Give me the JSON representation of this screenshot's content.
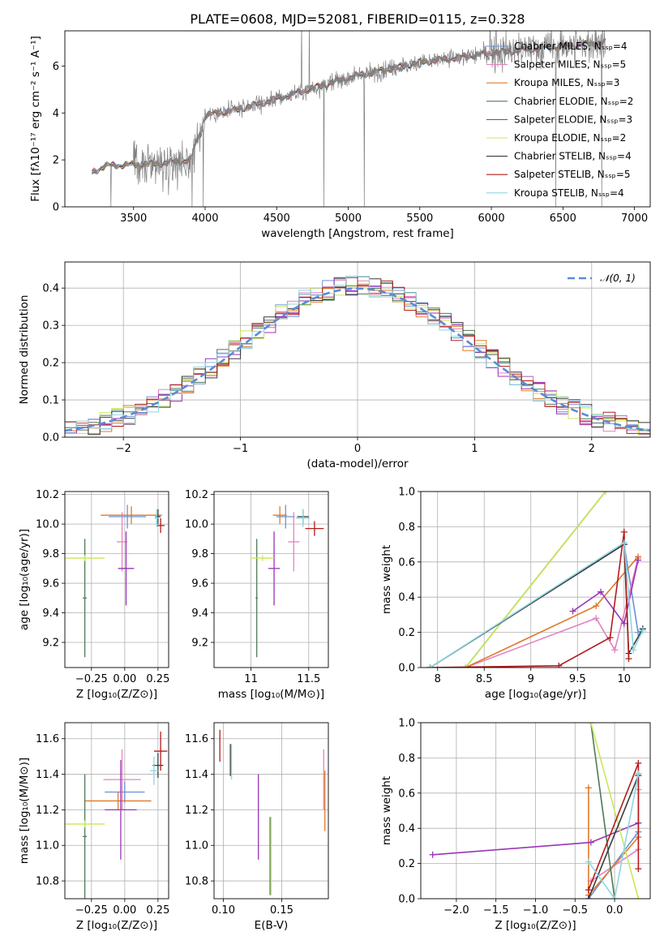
{
  "title": "PLATE=0608, MJD=52081, FIBERID=0115, z=0.328",
  "colors": {
    "Chabrier MILES": "#6a91d6",
    "Salpeter MILES": "#e383c1",
    "Kroupa MILES": "#e07a28",
    "Chabrier ELODIE": "#4e7a58",
    "Salpeter ELODIE": "#9b34b8",
    "Kroupa ELODIE": "#c8e858",
    "Chabrier STELIB": "#3a3a3a",
    "Salpeter STELIB": "#b31b1b",
    "Kroupa STELIB": "#8fd6e0"
  },
  "chart_data": [
    {
      "id": "spectrum",
      "type": "line",
      "xlabel": "wavelength [Angstrom, rest frame]",
      "ylabel": "Flux [fλ10⁻¹⁷ erg cm⁻² s⁻¹ A⁻¹]",
      "xlim": [
        3020,
        7110
      ],
      "ylim": [
        0,
        7.5
      ],
      "xticks": [
        3500,
        4000,
        4500,
        5000,
        5500,
        6000,
        6500,
        7000
      ],
      "yticks": [
        0,
        2,
        4,
        6
      ],
      "grid": false,
      "legend_position": "top-right",
      "legend": [
        {
          "label": "Chabrier MILES, Nₛₛₚ=4",
          "color": "#6a91d6"
        },
        {
          "label": "Salpeter MILES, Nₛₛₚ=5",
          "color": "#e383c1"
        },
        {
          "label": "Kroupa MILES, Nₛₛₚ=3",
          "color": "#e07a28"
        },
        {
          "label": "Chabrier ELODIE, Nₛₛₚ=2",
          "color": "#4e7a58"
        },
        {
          "label": "Salpeter ELODIE, Nₛₛₚ=3",
          "color": "#9b34b8"
        },
        {
          "label": "Kroupa ELODIE, Nₛₛₚ=2",
          "color": "#c8e858"
        },
        {
          "label": "Chabrier STELIB, Nₛₛₚ=4",
          "color": "#3a3a3a"
        },
        {
          "label": "Salpeter STELIB, Nₛₛₚ=5",
          "color": "#b31b1b"
        },
        {
          "label": "Kroupa STELIB, Nₛₛₚ=4",
          "color": "#8fd6e0"
        }
      ],
      "continuum": [
        [
          3210,
          1.45
        ],
        [
          3300,
          1.75
        ],
        [
          3500,
          1.8
        ],
        [
          3700,
          1.85
        ],
        [
          3900,
          2.0
        ],
        [
          4000,
          3.9
        ],
        [
          4200,
          4.1
        ],
        [
          4500,
          4.6
        ],
        [
          5000,
          5.5
        ],
        [
          5500,
          6.15
        ],
        [
          6000,
          6.55
        ],
        [
          6500,
          6.85
        ],
        [
          6800,
          7.0
        ]
      ]
    },
    {
      "id": "residual_hist",
      "type": "histogram",
      "xlabel": "(data-model)/error",
      "ylabel": "Normed distribution",
      "xlim": [
        -2.5,
        2.5
      ],
      "ylim": [
        0,
        0.47
      ],
      "xticks": [
        -2,
        -1,
        0,
        1,
        2
      ],
      "yticks": [
        0.0,
        0.1,
        0.2,
        0.3,
        0.4
      ],
      "grid": true,
      "legend_position": "top-right",
      "reference_label": "𝒩(0, 1)",
      "reference_color": "#5b8bd6"
    },
    {
      "id": "age_vs_Z",
      "type": "scatter",
      "xlabel": "Z [log₁₀(Z/Z⊙)]",
      "ylabel": "age  [log₁₀(age/yr)]",
      "xlim": [
        -0.45,
        0.33
      ],
      "ylim": [
        9.03,
        10.22
      ],
      "xticks": [
        -0.25,
        0.0,
        0.25
      ],
      "xtick_labels": [
        "−0.25",
        "0.00",
        "0.25"
      ],
      "yticks": [
        9.2,
        9.4,
        9.6,
        9.8,
        10.0,
        10.2
      ],
      "grid": true,
      "points": [
        {
          "model": "Chabrier MILES",
          "x": 0.02,
          "y": 10.05,
          "xerr": 0.14,
          "yerr": 0.08
        },
        {
          "model": "Salpeter MILES",
          "x": -0.02,
          "y": 9.88,
          "xerr": 0.04,
          "yerr": 0.2
        },
        {
          "model": "Kroupa MILES",
          "x": 0.05,
          "y": 10.06,
          "xerr": 0.23,
          "yerr": 0.06
        },
        {
          "model": "Chabrier ELODIE",
          "x": -0.3,
          "y": 9.5,
          "xerr": 0.015,
          "yerr": 0.4
        },
        {
          "model": "Salpeter ELODIE",
          "x": 0.01,
          "y": 9.7,
          "xerr": 0.06,
          "yerr": 0.25
        },
        {
          "model": "Kroupa ELODIE",
          "x": -0.3,
          "y": 9.77,
          "xerr": 0.15,
          "yerr": 0.02
        },
        {
          "model": "Chabrier STELIB",
          "x": 0.25,
          "y": 10.05,
          "xerr": 0.02,
          "yerr": 0.05
        },
        {
          "model": "Salpeter STELIB",
          "x": 0.27,
          "y": 9.99,
          "xerr": 0.03,
          "yerr": 0.05
        },
        {
          "model": "Kroupa STELIB",
          "x": 0.24,
          "y": 10.04,
          "xerr": 0.015,
          "yerr": 0.06
        }
      ]
    },
    {
      "id": "age_vs_mass",
      "type": "scatter",
      "xlabel": "mass [log₁₀(M/M⊙)]",
      "xlim": [
        10.68,
        11.67
      ],
      "ylim": [
        9.03,
        10.22
      ],
      "xticks": [
        11.0,
        11.5
      ],
      "yticks": [
        9.2,
        9.4,
        9.6,
        9.8,
        10.0,
        10.2
      ],
      "grid": true,
      "points": [
        {
          "model": "Chabrier MILES",
          "x": 11.3,
          "y": 10.05,
          "xerr": 0.08,
          "yerr": 0.08
        },
        {
          "model": "Salpeter MILES",
          "x": 11.37,
          "y": 9.88,
          "xerr": 0.05,
          "yerr": 0.2
        },
        {
          "model": "Kroupa MILES",
          "x": 11.25,
          "y": 10.06,
          "xerr": 0.06,
          "yerr": 0.06
        },
        {
          "model": "Chabrier ELODIE",
          "x": 11.05,
          "y": 9.5,
          "xerr": 0.01,
          "yerr": 0.4
        },
        {
          "model": "Salpeter ELODIE",
          "x": 11.2,
          "y": 9.7,
          "xerr": 0.05,
          "yerr": 0.25
        },
        {
          "model": "Kroupa ELODIE",
          "x": 11.1,
          "y": 9.77,
          "xerr": 0.1,
          "yerr": 0.02
        },
        {
          "model": "Chabrier STELIB",
          "x": 11.45,
          "y": 10.05,
          "xerr": 0.05,
          "yerr": 0.05
        },
        {
          "model": "Salpeter STELIB",
          "x": 11.55,
          "y": 9.97,
          "xerr": 0.08,
          "yerr": 0.05
        },
        {
          "model": "Kroupa STELIB",
          "x": 11.45,
          "y": 10.04,
          "xerr": 0.06,
          "yerr": 0.06
        }
      ]
    },
    {
      "id": "weight_vs_age",
      "type": "line",
      "xlabel": "age  [log₁₀(age/yr)]",
      "ylabel": "mass weight",
      "xlim": [
        7.82,
        10.28
      ],
      "ylim": [
        0,
        1.0
      ],
      "xticks": [
        8.0,
        8.5,
        9.0,
        9.5,
        10.0
      ],
      "yticks": [
        0.0,
        0.2,
        0.4,
        0.6,
        0.8,
        1.0
      ],
      "grid": true,
      "series": [
        {
          "model": "Chabrier MILES",
          "points": [
            [
              7.92,
              0.0
            ],
            [
              10.0,
              0.7
            ],
            [
              10.15,
              0.2
            ],
            [
              10.2,
              0.22
            ]
          ]
        },
        {
          "model": "Salpeter MILES",
          "points": [
            [
              8.3,
              0.0
            ],
            [
              9.7,
              0.28
            ],
            [
              9.9,
              0.1
            ],
            [
              10.15,
              0.62
            ]
          ]
        },
        {
          "model": "Kroupa MILES",
          "points": [
            [
              8.3,
              0.0
            ],
            [
              9.7,
              0.35
            ],
            [
              10.15,
              0.63
            ]
          ]
        },
        {
          "model": "Chabrier ELODIE",
          "points": [
            [
              8.3,
              0.0
            ],
            [
              9.8,
              1.0
            ]
          ]
        },
        {
          "model": "Salpeter ELODIE",
          "points": [
            [
              9.45,
              0.32
            ],
            [
              9.75,
              0.43
            ],
            [
              10.0,
              0.25
            ],
            [
              10.15,
              0.61
            ]
          ]
        },
        {
          "model": "Kroupa ELODIE",
          "points": [
            [
              8.3,
              0.0
            ],
            [
              9.8,
              1.0
            ]
          ]
        },
        {
          "model": "Chabrier STELIB",
          "points": [
            [
              7.92,
              0.0
            ],
            [
              10.0,
              0.7
            ],
            [
              10.05,
              0.08
            ],
            [
              10.2,
              0.22
            ]
          ]
        },
        {
          "model": "Salpeter STELIB",
          "points": [
            [
              7.92,
              0.0
            ],
            [
              9.3,
              0.01
            ],
            [
              9.85,
              0.17
            ],
            [
              10.0,
              0.77
            ],
            [
              10.05,
              0.05
            ]
          ]
        },
        {
          "model": "Kroupa STELIB",
          "points": [
            [
              7.92,
              0.0
            ],
            [
              10.0,
              0.71
            ],
            [
              10.1,
              0.1
            ],
            [
              10.2,
              0.21
            ]
          ]
        }
      ]
    },
    {
      "id": "mass_vs_Z",
      "type": "scatter",
      "xlabel": "Z [log₁₀(Z/Z⊙)]",
      "ylabel": "mass [log₁₀(M/M⊙)]",
      "xlim": [
        -0.45,
        0.33
      ],
      "ylim": [
        10.7,
        11.69
      ],
      "xticks": [
        -0.25,
        0.0,
        0.25
      ],
      "xtick_labels": [
        "−0.25",
        "0.00",
        "0.25"
      ],
      "yticks": [
        10.8,
        11.0,
        11.2,
        11.4,
        11.6
      ],
      "grid": true,
      "points": [
        {
          "model": "Chabrier MILES",
          "x": 0.0,
          "y": 11.3,
          "xerr": 0.15,
          "yerr": 0.06
        },
        {
          "model": "Salpeter MILES",
          "x": -0.02,
          "y": 11.37,
          "xerr": 0.14,
          "yerr": 0.17
        },
        {
          "model": "Kroupa MILES",
          "x": -0.05,
          "y": 11.25,
          "xerr": 0.25,
          "yerr": 0.05
        },
        {
          "model": "Chabrier ELODIE",
          "x": -0.3,
          "y": 11.05,
          "xerr": 0.015,
          "yerr": 0.35
        },
        {
          "model": "Salpeter ELODIE",
          "x": -0.03,
          "y": 11.2,
          "xerr": 0.12,
          "yerr": 0.28
        },
        {
          "model": "Kroupa ELODIE",
          "x": -0.3,
          "y": 11.12,
          "xerr": 0.15,
          "yerr": 0.02
        },
        {
          "model": "Chabrier STELIB",
          "x": 0.25,
          "y": 11.45,
          "xerr": 0.04,
          "yerr": 0.07
        },
        {
          "model": "Salpeter STELIB",
          "x": 0.27,
          "y": 11.53,
          "xerr": 0.05,
          "yerr": 0.11
        },
        {
          "model": "Kroupa STELIB",
          "x": 0.22,
          "y": 11.42,
          "xerr": 0.03,
          "yerr": 0.08
        }
      ]
    },
    {
      "id": "mass_vs_ebv",
      "type": "scatter",
      "xlabel": "E(B-V)",
      "xlim": [
        0.092,
        0.19
      ],
      "ylim": [
        10.7,
        11.69
      ],
      "xticks": [
        0.1,
        0.15
      ],
      "xtick_labels": [
        "0.10",
        "0.15"
      ],
      "yticks": [
        10.8,
        11.0,
        11.2,
        11.4,
        11.6
      ],
      "grid": true,
      "points": [
        {
          "model": "Salpeter STELIB",
          "x": 0.097,
          "y": 11.56,
          "yerr": 0.09
        },
        {
          "model": "Chabrier STELIB",
          "x": 0.106,
          "y": 11.48,
          "yerr": 0.09
        },
        {
          "model": "Kroupa STELIB",
          "x": 0.107,
          "y": 11.47,
          "yerr": 0.1
        },
        {
          "model": "Salpeter ELODIE",
          "x": 0.13,
          "y": 11.16,
          "yerr": 0.24
        },
        {
          "model": "Chabrier ELODIE",
          "x": 0.14,
          "y": 10.94,
          "yerr": 0.22
        },
        {
          "model": "Kroupa ELODIE",
          "x": 0.141,
          "y": 10.94,
          "yerr": 0.22
        },
        {
          "model": "Kroupa MILES",
          "x": 0.187,
          "y": 11.25,
          "yerr": 0.17
        },
        {
          "model": "Salpeter MILES",
          "x": 0.186,
          "y": 11.37,
          "yerr": 0.17
        }
      ]
    },
    {
      "id": "weight_vs_Z",
      "type": "line",
      "xlabel": "Z [log₁₀(Z/Z⊙)]",
      "ylabel": "mass weight",
      "xlim": [
        -2.45,
        0.45
      ],
      "ylim": [
        0,
        1.0
      ],
      "xticks": [
        -2.0,
        -1.5,
        -1.0,
        -0.5,
        0.0
      ],
      "xtick_labels": [
        "−2.0",
        "−1.5",
        "−1.0",
        "−0.5",
        "0.0"
      ],
      "yticks": [
        0.0,
        0.2,
        0.4,
        0.6,
        0.8,
        1.0
      ],
      "grid": true,
      "series": [
        {
          "model": "Chabrier MILES",
          "points": [
            [
              -0.33,
              0.0
            ],
            [
              0.3,
              0.38
            ],
            [
              0.3,
              0.71
            ]
          ]
        },
        {
          "model": "Salpeter MILES",
          "points": [
            [
              -0.3,
              0.1
            ],
            [
              0.3,
              0.28
            ],
            [
              0.3,
              0.62
            ]
          ]
        },
        {
          "model": "Kroupa MILES",
          "points": [
            [
              -0.33,
              0.63
            ],
            [
              -0.33,
              0.02
            ],
            [
              0.3,
              0.35
            ]
          ]
        },
        {
          "model": "Chabrier ELODIE",
          "points": [
            [
              -0.3,
              1.0
            ],
            [
              0.0,
              0.0
            ]
          ]
        },
        {
          "model": "Salpeter ELODIE",
          "points": [
            [
              -2.3,
              0.25
            ],
            [
              -0.3,
              0.32
            ],
            [
              0.3,
              0.43
            ]
          ]
        },
        {
          "model": "Kroupa ELODIE",
          "points": [
            [
              -0.3,
              1.0
            ],
            [
              0.3,
              0.0
            ]
          ]
        },
        {
          "model": "Chabrier STELIB",
          "points": [
            [
              -0.33,
              0.0
            ],
            [
              0.3,
              0.7
            ]
          ]
        },
        {
          "model": "Salpeter STELIB",
          "points": [
            [
              -0.33,
              0.05
            ],
            [
              0.3,
              0.77
            ],
            [
              0.3,
              0.17
            ]
          ]
        },
        {
          "model": "Kroupa STELIB",
          "points": [
            [
              -0.33,
              0.21
            ],
            [
              0.0,
              0.0
            ],
            [
              0.3,
              0.71
            ]
          ]
        }
      ]
    }
  ]
}
